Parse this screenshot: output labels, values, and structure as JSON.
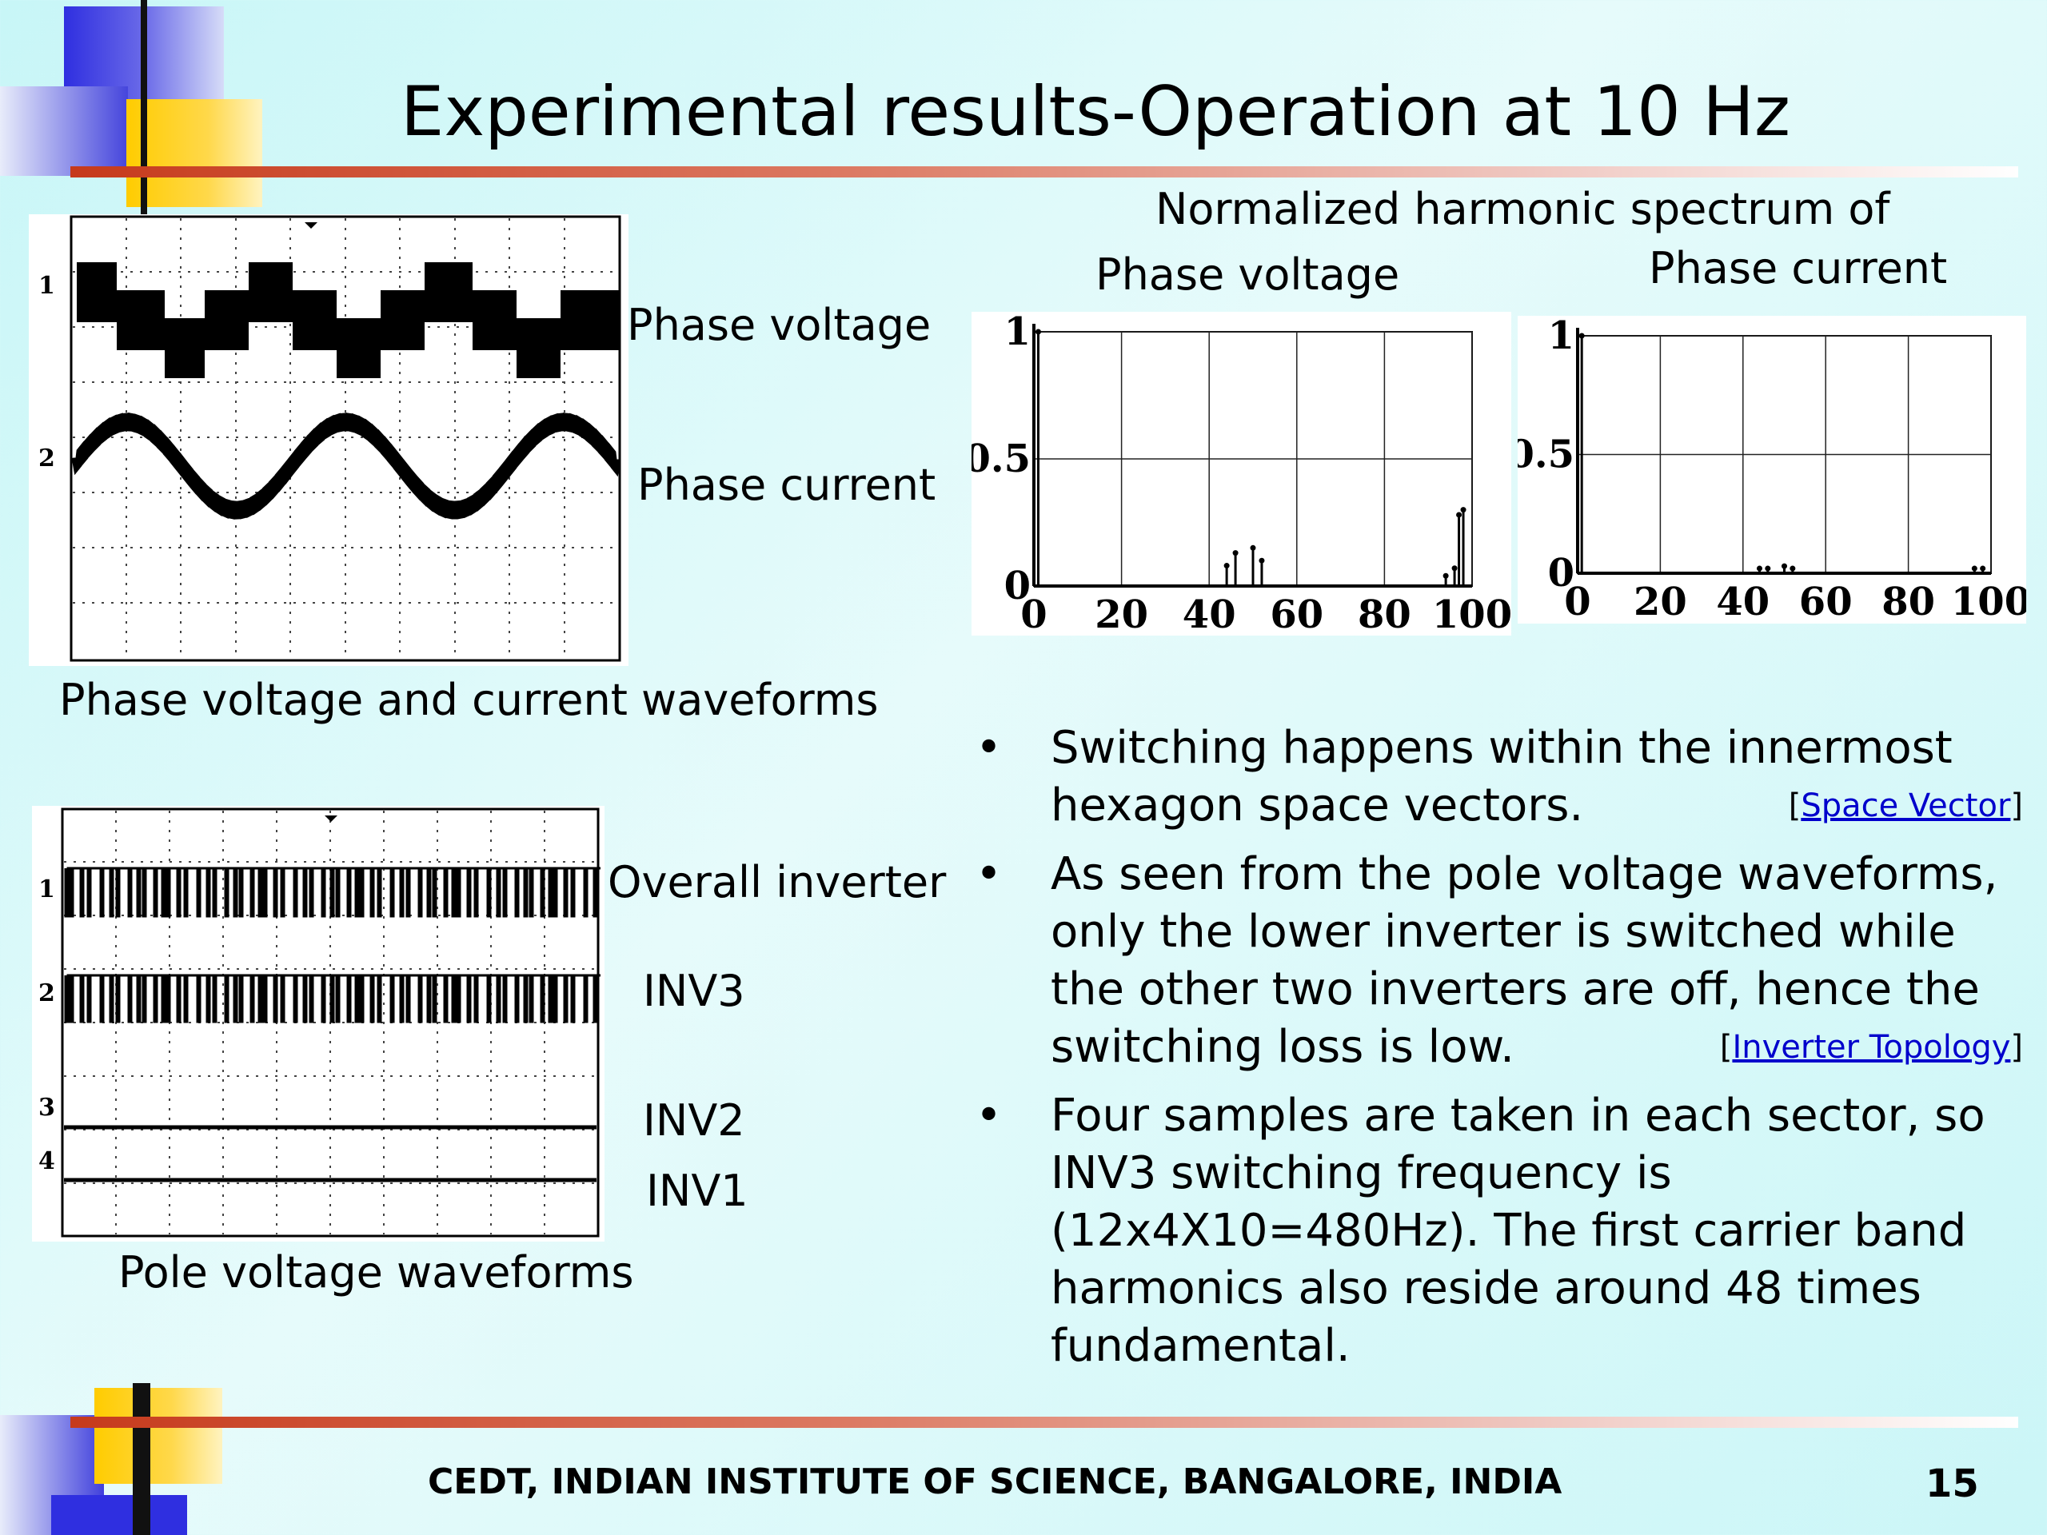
{
  "slide": {
    "title": "Experimental results-Operation at 10 Hz",
    "footer": "CEDT, INDIAN INSTITUTE OF SCIENCE, BANGALORE, INDIA",
    "page_number": "15"
  },
  "scope_top": {
    "caption": "Phase voltage and current waveforms",
    "channel_labels": [
      "Phase voltage",
      "Phase current"
    ],
    "channel_markers": [
      "1",
      "2"
    ]
  },
  "scope_bottom": {
    "caption": "Pole voltage waveforms",
    "channel_labels": [
      "Overall inverter",
      "INV3",
      "INV2",
      "INV1"
    ],
    "channel_markers": [
      "1",
      "2",
      "3",
      "4"
    ]
  },
  "spectrum": {
    "heading": "Normalized harmonic spectrum of",
    "voltage_title": "Phase voltage",
    "current_title": "Phase current"
  },
  "bullets": [
    {
      "text": "Switching happens within the innermost hexagon space vectors.",
      "link": "Space Vector"
    },
    {
      "text": "As seen from the pole voltage waveforms, only the lower inverter is switched  while the other two inverters are off, hence the switching loss is low.",
      "link": "Inverter Topology"
    },
    {
      "text": "Four samples are taken in each sector, so INV3 switching frequency is (12x4X10=480Hz). The first carrier band harmonics also reside around 48 times fundamental.",
      "link": ""
    }
  ],
  "chart_data": [
    {
      "type": "bar",
      "title": "Phase voltage",
      "xlim": [
        0,
        100
      ],
      "ylim": [
        0,
        1
      ],
      "xticks": [
        "0",
        "20",
        "40",
        "60",
        "80",
        "100"
      ],
      "yticks": [
        "0",
        "0.5",
        "1"
      ],
      "grid": true,
      "x": [
        1,
        44,
        46,
        50,
        52,
        94,
        96,
        97,
        98
      ],
      "values": [
        1.0,
        0.08,
        0.13,
        0.15,
        0.1,
        0.04,
        0.07,
        0.28,
        0.3
      ]
    },
    {
      "type": "bar",
      "title": "Phase current",
      "xlim": [
        0,
        100
      ],
      "ylim": [
        0,
        1
      ],
      "xticks": [
        "0",
        "20",
        "40",
        "60",
        "80",
        "100"
      ],
      "yticks": [
        "0",
        "0.5",
        "1"
      ],
      "grid": true,
      "x": [
        1,
        44,
        46,
        50,
        52,
        96,
        98
      ],
      "values": [
        1.0,
        0.02,
        0.02,
        0.03,
        0.02,
        0.02,
        0.02
      ]
    }
  ]
}
